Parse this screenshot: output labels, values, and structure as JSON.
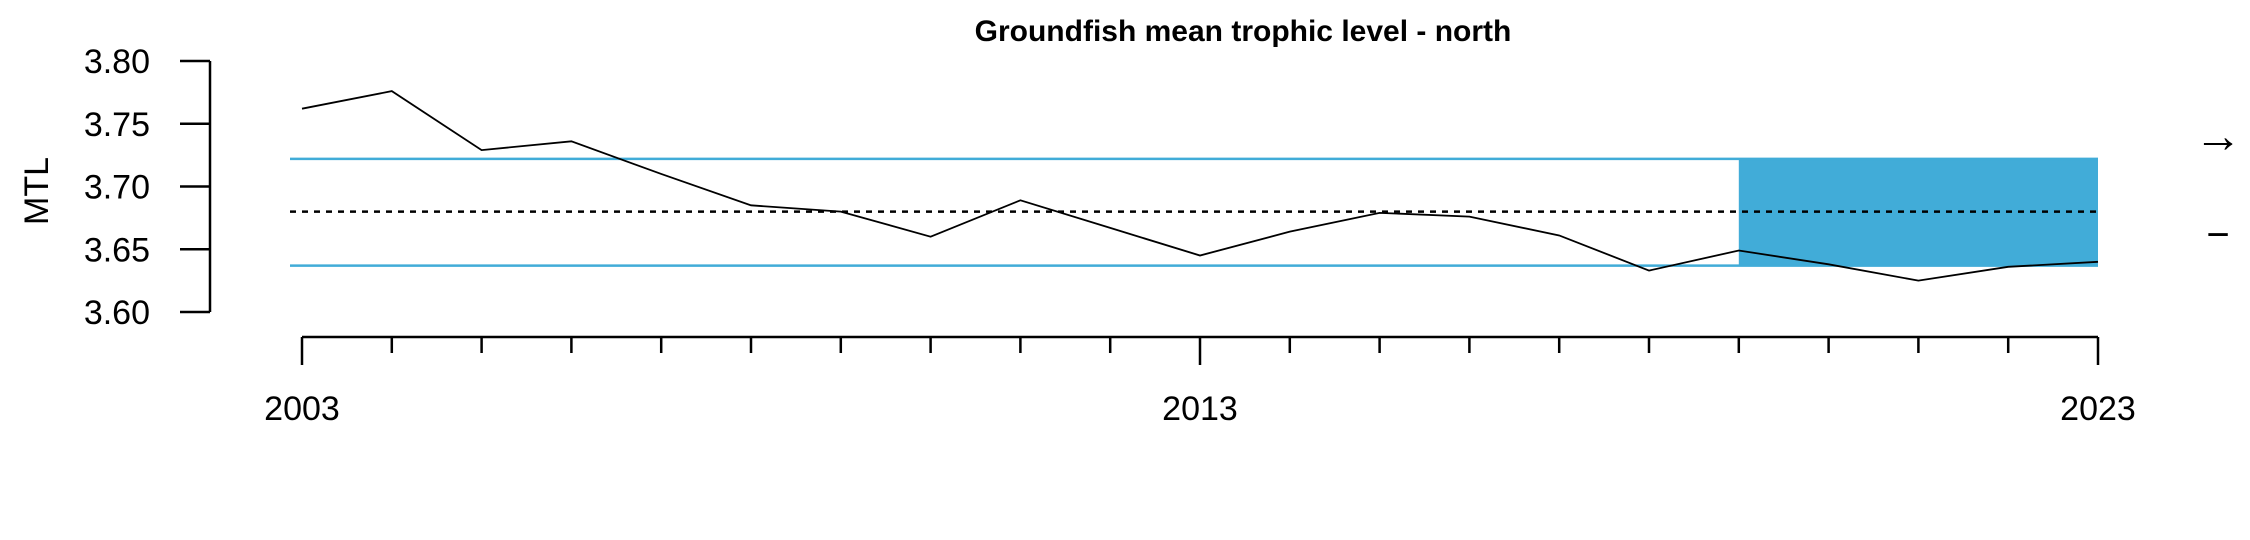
{
  "chart_data": {
    "type": "line",
    "title": "Groundfish mean trophic level - north",
    "xlabel": "",
    "ylabel": "MTL",
    "xlim": [
      2003,
      2023
    ],
    "ylim": [
      3.6,
      3.8
    ],
    "x_tick_labels": [
      "2003",
      "2013",
      "2023"
    ],
    "y_tick_labels": [
      "3.60",
      "3.65",
      "3.70",
      "3.75",
      "3.80"
    ],
    "series": [
      {
        "x": [
          2003,
          2004,
          2005,
          2006,
          2007,
          2008,
          2009,
          2010,
          2011,
          2012,
          2013,
          2014,
          2015,
          2016,
          2017,
          2018,
          2019,
          2020,
          2021,
          2022,
          2023
        ],
        "y": [
          3.762,
          3.776,
          3.729,
          3.736,
          3.71,
          3.685,
          3.68,
          3.66,
          3.689,
          3.667,
          3.645,
          3.664,
          3.679,
          3.676,
          3.661,
          3.633,
          3.649,
          3.638,
          3.625,
          3.636,
          3.64
        ]
      }
    ],
    "mean": 3.68,
    "upper_bound": 3.722,
    "lower_bound": 3.637,
    "recent_period": [
      2019,
      2023
    ],
    "trend_symbol": "→",
    "status_symbol": "−",
    "colors": {
      "line": "#000000",
      "bounds": "#41acd8",
      "recent_fill": "#41acd8",
      "mean": "#000000"
    },
    "grid": false,
    "legend": "none"
  }
}
